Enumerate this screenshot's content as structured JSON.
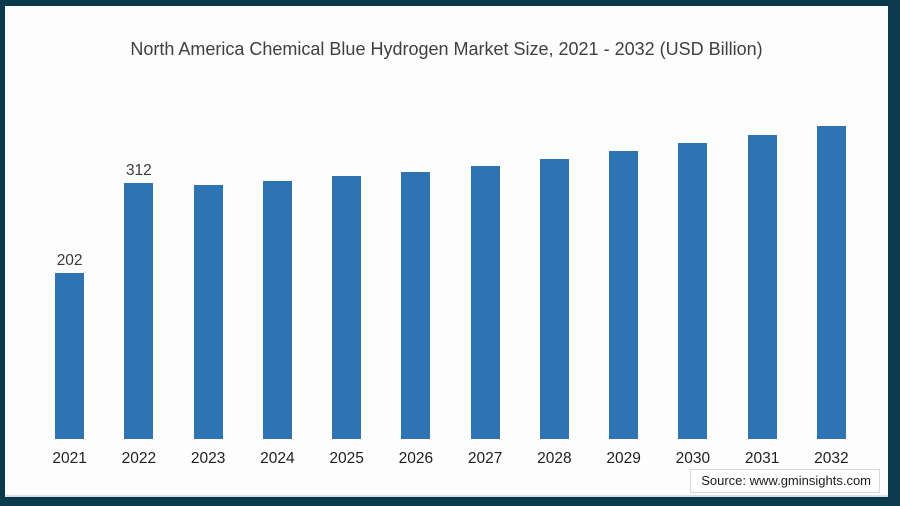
{
  "frame": {
    "border_color": "#0c3a4d",
    "canvas_background": "#fdfdfd"
  },
  "header": {
    "title": "North America Chemical Blue Hydrogen Market Size, 2021 - 2032 (USD Billion)"
  },
  "footer": {
    "source": "Source: www.gminsights.com"
  },
  "chart_data": {
    "type": "bar",
    "title": "North America Chemical Blue Hydrogen Market Size, 2021 - 2032 (USD Billion)",
    "categories": [
      "2021",
      "2022",
      "2023",
      "2024",
      "2025",
      "2026",
      "2027",
      "2028",
      "2029",
      "2030",
      "2031",
      "2032"
    ],
    "values": [
      202,
      312,
      310,
      315,
      321,
      326,
      333,
      341,
      351,
      361,
      371,
      382
    ],
    "value_labels_visible": [
      "202",
      "312",
      "",
      "",
      "",
      "",
      "",
      "",
      "",
      "",
      "",
      ""
    ],
    "bar_color": "#2e74b2",
    "xlabel": "",
    "ylabel": "",
    "ylim": [
      0,
      400
    ],
    "grid": false,
    "legend": false,
    "axis_lines": false
  }
}
